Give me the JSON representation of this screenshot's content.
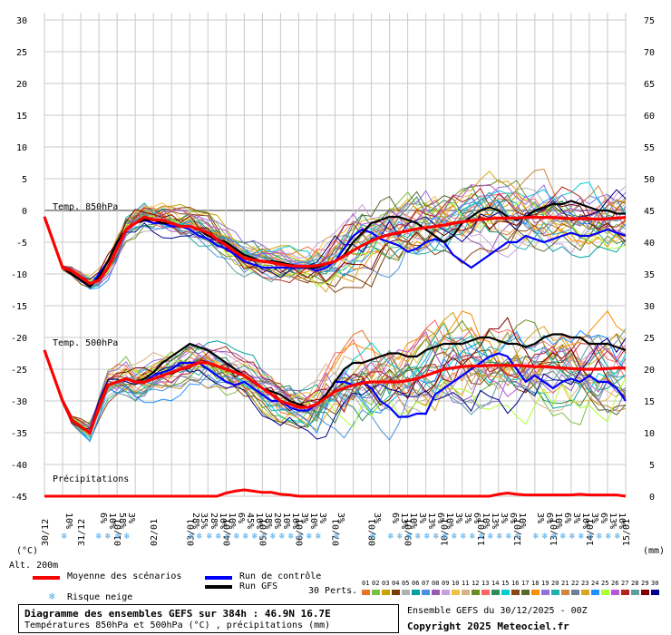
{
  "chart_data": {
    "type": "line",
    "title": "Diagramme des ensembles GEFS sur 384h : 46.9N 16.7E",
    "subtitle": "Températures 850hPa et 500hPa (°C) , précipitations (mm)",
    "left_axis": {
      "unit": "(°C)",
      "ticks": [
        30,
        25,
        20,
        15,
        10,
        5,
        0,
        -5,
        -10,
        -15,
        -20,
        -25,
        -30,
        -35,
        -40,
        -45
      ],
      "range": [
        -45,
        30
      ]
    },
    "right_axis": {
      "unit": "(mm)",
      "ticks": [
        75,
        70,
        65,
        60,
        55,
        50,
        45,
        40,
        35,
        30,
        25,
        20,
        15,
        10,
        5,
        0
      ],
      "range": [
        0,
        75
      ]
    },
    "x_ticks": [
      "31/12",
      "01/01",
      "02/01",
      "03/01",
      "04/01",
      "05/01",
      "06/01",
      "07/01",
      "08/01",
      "09/01",
      "10/01",
      "11/01",
      "12/01",
      "13/01",
      "14/01",
      "15/01"
    ],
    "x_first": "30/12",
    "annotations": {
      "t850": "Temp. 850hPa",
      "t500": "Temp. 500hPa",
      "precip": "Précipitations",
      "alt": "Alt. 200m"
    },
    "ensemble_mean_850": [
      -1,
      -5,
      -9,
      -9.5,
      -10.5,
      -11.5,
      -11,
      -9,
      -6,
      -3,
      -2,
      -1,
      -1.5,
      -1.5,
      -2,
      -2.5,
      -2.5,
      -3,
      -3.5,
      -4.5,
      -5.5,
      -6.5,
      -7.5,
      -7.8,
      -8,
      -8.2,
      -8.5,
      -8.7,
      -8.8,
      -8.8,
      -8.7,
      -8.4,
      -8,
      -7.2,
      -6.3,
      -5.5,
      -4.8,
      -4.2,
      -3.8,
      -3.5,
      -3.2,
      -2.9,
      -2.7,
      -2.5,
      -2.3,
      -2.0,
      -1.8,
      -1.6,
      -1.4,
      -1.3,
      -1.2,
      -1.2,
      -1.2,
      -1.1,
      -1.1,
      -1.1,
      -1.1,
      -1.2,
      -1.3,
      -1.3,
      -1.3,
      -1.4,
      -1.3,
      -1.2,
      -1.1
    ],
    "ensemble_mean_500": [
      -22,
      -26,
      -30,
      -33,
      -34,
      -35,
      -31,
      -27.5,
      -27,
      -26.5,
      -27,
      -27,
      -26.5,
      -26,
      -25.5,
      -25,
      -24.5,
      -24,
      -24,
      -24.5,
      -25,
      -25.5,
      -26,
      -27,
      -28,
      -29,
      -30,
      -30.5,
      -31,
      -31,
      -30.5,
      -29.5,
      -28.5,
      -28,
      -27.5,
      -27.2,
      -27,
      -27,
      -27,
      -27,
      -26.8,
      -26.5,
      -26,
      -25.5,
      -25,
      -24.8,
      -24.6,
      -24.5,
      -24.5,
      -24.4,
      -24.4,
      -24.4,
      -24.4,
      -24.5,
      -24.6,
      -24.6,
      -24.7,
      -24.8,
      -24.9,
      -25.0,
      -25.0,
      -25.0,
      -24.9,
      -24.8,
      -24.8
    ],
    "mean_precip_mm": [
      0,
      0,
      0,
      0,
      0,
      0,
      0,
      0,
      0,
      0,
      0,
      0,
      0,
      0,
      0,
      0,
      0,
      0,
      0,
      0,
      0.5,
      0.8,
      1.0,
      0.8,
      0.6,
      0.6,
      0.3,
      0.2,
      0,
      0,
      0,
      0,
      0,
      0,
      0,
      0,
      0,
      0,
      0,
      0,
      0,
      0,
      0,
      0,
      0,
      0,
      0,
      0,
      0,
      0,
      0.3,
      0.5,
      0.3,
      0.2,
      0.2,
      0.2,
      0.2,
      0.2,
      0.2,
      0.3,
      0.2,
      0.2,
      0.2,
      0.2,
      0
    ],
    "control_850": [
      -1,
      -5,
      -9,
      -10,
      -11,
      -12,
      -10,
      -8,
      -5,
      -3,
      -2,
      -1.5,
      -2,
      -2,
      -2.5,
      -2.5,
      -3,
      -4,
      -4.5,
      -5.5,
      -6,
      -7,
      -8,
      -8.5,
      -9,
      -9,
      -9,
      -9,
      -9,
      -9,
      -9.5,
      -9,
      -8,
      -6,
      -4,
      -3,
      -3.5,
      -4.5,
      -5,
      -5.5,
      -6.5,
      -6,
      -5,
      -4.5,
      -5,
      -7,
      -8,
      -9,
      -8,
      -7,
      -6,
      -5,
      -5,
      -4,
      -4.5,
      -5,
      -4.5,
      -4,
      -3.5,
      -4,
      -4,
      -3.5,
      -3,
      -3.5,
      -4
    ],
    "control_500": [
      -22,
      -26,
      -30,
      -33,
      -34,
      -35,
      -31,
      -27.5,
      -27,
      -26.5,
      -27,
      -27,
      -26,
      -25.5,
      -25,
      -24,
      -24,
      -24,
      -25,
      -26,
      -27,
      -27.5,
      -27,
      -28,
      -29,
      -30,
      -30,
      -31,
      -31.5,
      -31.5,
      -30.5,
      -29,
      -27,
      -27,
      -27.5,
      -27,
      -28,
      -30,
      -31,
      -32.5,
      -32.5,
      -32,
      -32,
      -29,
      -28,
      -27,
      -26,
      -25,
      -24,
      -23,
      -22.5,
      -23,
      -25,
      -27,
      -26,
      -27,
      -28,
      -27,
      -26.5,
      -27,
      -26,
      -27,
      -27,
      -28,
      -30
    ],
    "gfs_850": [
      -1,
      -5,
      -9,
      -10,
      -11,
      -12,
      -10.5,
      -8,
      -5,
      -3,
      -2,
      -1.5,
      -1.5,
      -2,
      -2,
      -2.5,
      -2.5,
      -3,
      -4,
      -4.5,
      -5,
      -6,
      -7,
      -7.5,
      -8,
      -8,
      -8.2,
      -8.5,
      -8.8,
      -9,
      -9,
      -8.5,
      -8,
      -7,
      -5,
      -3.5,
      -2,
      -1.5,
      -1,
      -1,
      -1.5,
      -2,
      -3,
      -4,
      -5,
      -4,
      -2,
      -1,
      0,
      0.5,
      0,
      -1,
      -1.5,
      -1,
      0,
      0.5,
      1,
      1,
      1.5,
      1,
      0.5,
      0,
      0,
      -0.5,
      -0.5
    ],
    "gfs_500": [
      -22,
      -26,
      -30,
      -33,
      -34,
      -35,
      -31,
      -27.5,
      -27,
      -26.5,
      -27,
      -26.5,
      -25.5,
      -24,
      -23,
      -22,
      -21,
      -21.5,
      -22,
      -23,
      -24,
      -25,
      -26,
      -27,
      -28,
      -28.5,
      -29,
      -30,
      -30.5,
      -31,
      -30.5,
      -29,
      -27,
      -25,
      -24,
      -24,
      -23.5,
      -23,
      -22.5,
      -22.5,
      -23,
      -23,
      -22,
      -21.5,
      -21,
      -21,
      -21,
      -20.5,
      -20,
      -20,
      -20.5,
      -21,
      -21,
      -21.5,
      -21,
      -20,
      -19.5,
      -19.5,
      -20,
      -20,
      -21,
      -21,
      -21,
      -21.5,
      -22
    ],
    "snow_risk_labels": [
      {
        "x": 70,
        "t": "10%"
      },
      {
        "x": 108,
        "t": "6%"
      },
      {
        "x": 118,
        "t": "10%"
      },
      {
        "x": 129,
        "t": "58%"
      },
      {
        "x": 139,
        "t": "3%"
      },
      {
        "x": 210,
        "t": "28%"
      },
      {
        "x": 219,
        "t": "35%"
      },
      {
        "x": 230,
        "t": "28%"
      },
      {
        "x": 240,
        "t": "10%"
      },
      {
        "x": 250,
        "t": "10%"
      },
      {
        "x": 260,
        "t": "6%"
      },
      {
        "x": 270,
        "t": "45%"
      },
      {
        "x": 280,
        "t": "10%"
      },
      {
        "x": 290,
        "t": "38%"
      },
      {
        "x": 300,
        "t": "20%"
      },
      {
        "x": 310,
        "t": "10%"
      },
      {
        "x": 320,
        "t": "10%"
      },
      {
        "x": 330,
        "t": "3%"
      },
      {
        "x": 340,
        "t": "10%"
      },
      {
        "x": 350,
        "t": "3%"
      },
      {
        "x": 370,
        "t": "3%"
      },
      {
        "x": 410,
        "t": "3%"
      },
      {
        "x": 430,
        "t": "6%"
      },
      {
        "x": 440,
        "t": "13%"
      },
      {
        "x": 450,
        "t": "10%"
      },
      {
        "x": 460,
        "t": "3%"
      },
      {
        "x": 470,
        "t": "13%"
      },
      {
        "x": 480,
        "t": "6%"
      },
      {
        "x": 490,
        "t": "10%"
      },
      {
        "x": 500,
        "t": "3%"
      },
      {
        "x": 510,
        "t": "3%"
      },
      {
        "x": 520,
        "t": "6%"
      },
      {
        "x": 530,
        "t": "10%"
      },
      {
        "x": 540,
        "t": "13%"
      },
      {
        "x": 550,
        "t": "3%"
      },
      {
        "x": 560,
        "t": "6%"
      },
      {
        "x": 570,
        "t": "10%"
      },
      {
        "x": 590,
        "t": "3%"
      },
      {
        "x": 600,
        "t": "6%"
      },
      {
        "x": 610,
        "t": "10%"
      },
      {
        "x": 620,
        "t": "6%"
      },
      {
        "x": 630,
        "t": "3%"
      },
      {
        "x": 640,
        "t": "10%"
      },
      {
        "x": 650,
        "t": "3%"
      },
      {
        "x": 660,
        "t": "6%"
      },
      {
        "x": 670,
        "t": "13%"
      },
      {
        "x": 680,
        "t": "10%"
      }
    ],
    "grid": true
  },
  "legend": {
    "mean": {
      "label": "Moyenne des scénarios",
      "color": "#ff0000"
    },
    "control": {
      "label": "Run de contrôle",
      "color": "#0000ff"
    },
    "gfs": {
      "label": "Run GFS",
      "color": "#000000"
    },
    "snow": {
      "label": "Risque neige"
    },
    "perts_label": "30 Perts.",
    "pert_numbers": [
      "01",
      "02",
      "03",
      "04",
      "05",
      "06",
      "07",
      "08",
      "09",
      "10",
      "11",
      "12",
      "13",
      "14",
      "15",
      "16",
      "17",
      "18",
      "19",
      "20",
      "21",
      "22",
      "23",
      "24",
      "25",
      "26",
      "27",
      "28",
      "29",
      "30"
    ],
    "pert_colors": [
      "#e8742a",
      "#7ac143",
      "#c8a400",
      "#7a3d00",
      "#b0b0b0",
      "#00a0a0",
      "#4a90e2",
      "#9b59b6",
      "#c9a0dc",
      "#f0c040",
      "#d4b483",
      "#6b8e23",
      "#ff6666",
      "#2e8b57",
      "#00ced1",
      "#8b4513",
      "#556b2f",
      "#ff8c00",
      "#9370db",
      "#20b2aa",
      "#cd853f",
      "#708090",
      "#daa520",
      "#1e90ff",
      "#adff2f",
      "#ba55d3",
      "#b22222",
      "#5f9ea0",
      "#800000",
      "#00008b"
    ]
  },
  "footer": {
    "line1": "Diagramme des ensembles GEFS sur 384h : 46.9N 16.7E",
    "line2": "Températures 850hPa et 500hPa (°C) , précipitations (mm)",
    "ensemble": "Ensemble GEFS du 30/12/2025 - 00Z",
    "copyright": "Copyright 2025 Meteociel.fr"
  }
}
